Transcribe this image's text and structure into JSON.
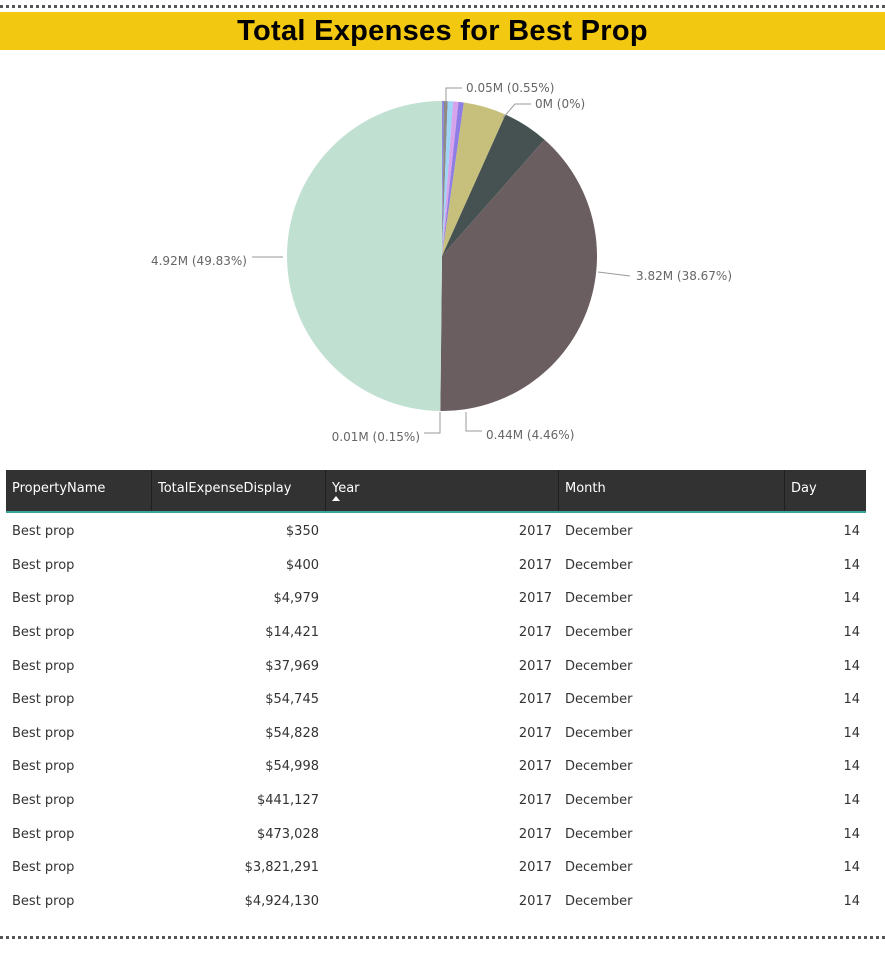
{
  "title": "Total Expenses for Best Prop",
  "chart_data": {
    "type": "pie",
    "slices": [
      {
        "value": 350,
        "color": "#8a8478"
      },
      {
        "value": 400,
        "color": "#b26ee8"
      },
      {
        "value": 4979,
        "color": "#9c82a0"
      },
      {
        "value": 14421,
        "color": "#7a7cf2"
      },
      {
        "value": 37969,
        "color": "#8f8a84"
      },
      {
        "value": 54745,
        "color": "#9ed4f4"
      },
      {
        "value": 54828,
        "color": "#d7a3ea"
      },
      {
        "value": 54998,
        "color": "#8f7de6"
      },
      {
        "value": 441127,
        "color": "#333031"
      },
      {
        "value": 473028,
        "color": "#c4c07a"
      },
      {
        "value": 3821291,
        "color": "#6d5e60"
      },
      {
        "value": 4924130,
        "color": "#465251"
      }
    ],
    "labels": [
      {
        "text": "0.05M (0.55%)"
      },
      {
        "text": "0M (0%)"
      },
      {
        "text": "3.82M (38.67%)"
      },
      {
        "text": "0.44M (4.46%)"
      },
      {
        "text": "0.01M (0.15%)"
      },
      {
        "text": "4.92M (49.83%)"
      }
    ]
  },
  "table": {
    "headers": [
      "PropertyName",
      "TotalExpenseDisplay",
      "Year",
      "Month",
      "Day"
    ],
    "rows": [
      [
        "Best prop",
        "$350",
        "2017",
        "December",
        "14"
      ],
      [
        "Best prop",
        "$400",
        "2017",
        "December",
        "14"
      ],
      [
        "Best prop",
        "$4,979",
        "2017",
        "December",
        "14"
      ],
      [
        "Best prop",
        "$14,421",
        "2017",
        "December",
        "14"
      ],
      [
        "Best prop",
        "$37,969",
        "2017",
        "December",
        "14"
      ],
      [
        "Best prop",
        "$54,745",
        "2017",
        "December",
        "14"
      ],
      [
        "Best prop",
        "$54,828",
        "2017",
        "December",
        "14"
      ],
      [
        "Best prop",
        "$54,998",
        "2017",
        "December",
        "14"
      ],
      [
        "Best prop",
        "$441,127",
        "2017",
        "December",
        "14"
      ],
      [
        "Best prop",
        "$473,028",
        "2017",
        "December",
        "14"
      ],
      [
        "Best prop",
        "$3,821,291",
        "2017",
        "December",
        "14"
      ],
      [
        "Best prop",
        "$4,924,130",
        "2017",
        "December",
        "14"
      ]
    ]
  }
}
